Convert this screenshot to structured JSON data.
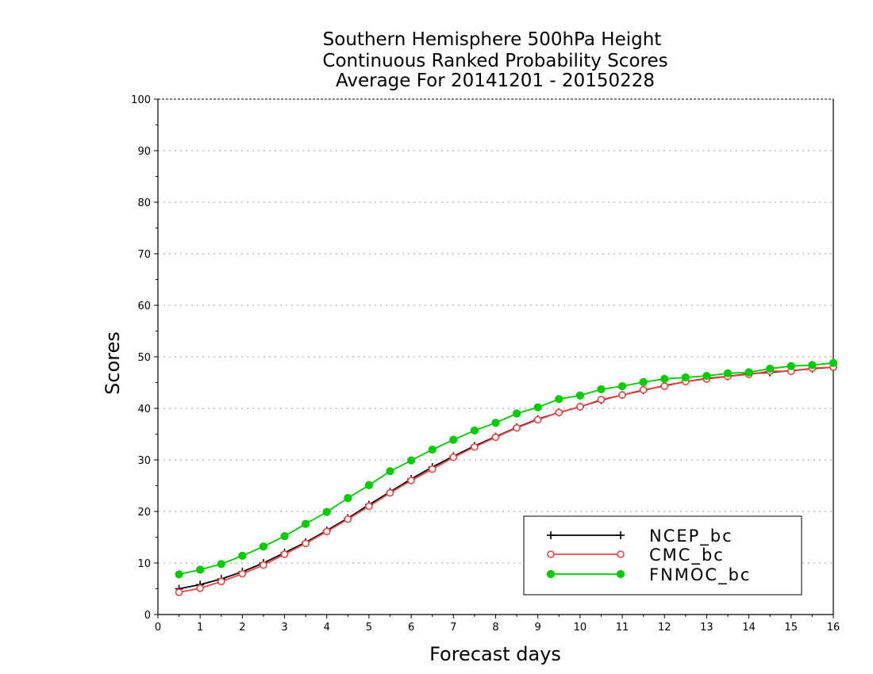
{
  "chart_data": {
    "type": "line",
    "title": [
      "Southern Hemisphere 500hPa Height",
      "Continuous Ranked Probability Scores",
      "Average For 20141201 - 20150228"
    ],
    "xlabel": "Forecast days",
    "ylabel": "Scores",
    "xlim": [
      0,
      16
    ],
    "ylim": [
      0,
      100
    ],
    "xticks": [
      "0",
      "1",
      "2",
      "3",
      "4",
      "5",
      "6",
      "7",
      "8",
      "9",
      "10",
      "11",
      "12",
      "13",
      "14",
      "15",
      "16"
    ],
    "yticks": [
      "0",
      "10",
      "20",
      "30",
      "40",
      "50",
      "60",
      "70",
      "80",
      "90",
      "100"
    ],
    "grid": "horizontal dotted",
    "legend_position": "bottom-right",
    "x": [
      0.5,
      1,
      1.5,
      2,
      2.5,
      3,
      3.5,
      4,
      4.5,
      5,
      5.5,
      6,
      6.5,
      7,
      7.5,
      8,
      8.5,
      9,
      9.5,
      10,
      10.5,
      11,
      11.5,
      12,
      12.5,
      13,
      13.5,
      14,
      14.5,
      15,
      15.5,
      16
    ],
    "series": [
      {
        "name": "NCEP_bc",
        "color": "#000000",
        "marker": "plus",
        "values": [
          5.0,
          5.8,
          6.9,
          8.3,
          10.0,
          12.0,
          14.0,
          16.3,
          18.7,
          21.3,
          23.8,
          26.3,
          28.6,
          30.7,
          32.7,
          34.5,
          36.3,
          37.9,
          39.2,
          40.3,
          41.6,
          42.6,
          43.5,
          44.4,
          45.2,
          45.8,
          46.2,
          46.7,
          47.0,
          47.3,
          47.7,
          48.0
        ]
      },
      {
        "name": "CMC_bc",
        "color": "#ee4444",
        "marker": "open-circle",
        "values": [
          4.3,
          5.1,
          6.4,
          7.9,
          9.6,
          11.7,
          13.8,
          16.1,
          18.5,
          21.0,
          23.6,
          26.0,
          28.2,
          30.5,
          32.5,
          34.4,
          36.2,
          37.8,
          39.2,
          40.3,
          41.7,
          42.6,
          43.6,
          44.3,
          45.2,
          45.7,
          46.2,
          46.6,
          47.2,
          47.2,
          47.8,
          48.0
        ]
      },
      {
        "name": "FNMOC_bc",
        "color": "#00cc00",
        "marker": "filled-circle",
        "values": [
          7.8,
          8.7,
          9.8,
          11.4,
          13.2,
          15.2,
          17.6,
          19.9,
          22.6,
          25.1,
          27.8,
          29.9,
          32.0,
          33.9,
          35.7,
          37.2,
          39.0,
          40.2,
          41.8,
          42.5,
          43.7,
          44.3,
          45.1,
          45.7,
          46.0,
          46.3,
          46.8,
          47.0,
          47.7,
          48.2,
          48.4,
          48.8
        ]
      }
    ]
  }
}
